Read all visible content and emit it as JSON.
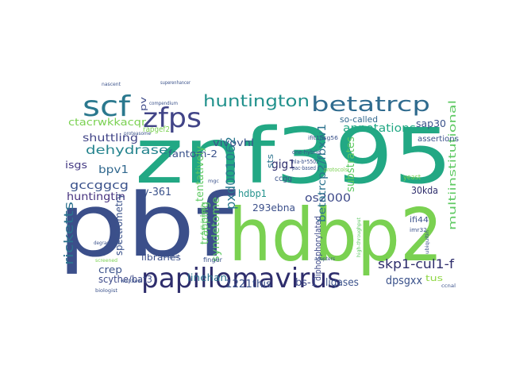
{
  "words": [
    {
      "text": "znf395",
      "color": "#22a884"
    },
    {
      "text": "pbf",
      "color": "#3b4f8a"
    },
    {
      "text": "hdbp2",
      "color": "#7ad151"
    },
    {
      "text": "papillomavirus",
      "color": "#2e2d6c"
    },
    {
      "text": "scf",
      "color": "#2a788e"
    },
    {
      "text": "zfps",
      "color": "#414487"
    },
    {
      "text": "betatrcp",
      "color": "#2f6b8e"
    },
    {
      "text": "huntington",
      "color": "#21918c"
    },
    {
      "text": "dehydrase",
      "color": "#25848e"
    },
    {
      "text": "ctacrwkkacqr",
      "color": "#7ad151"
    },
    {
      "text": "fantom-2",
      "color": "#3a528b"
    },
    {
      "text": "shuttling",
      "color": "#414487"
    },
    {
      "text": "bpv1",
      "color": "#31688e"
    },
    {
      "text": "isgs",
      "color": "#443983"
    },
    {
      "text": "gccggcg",
      "color": "#3b528b"
    },
    {
      "text": "huntingtin",
      "color": "#46327e"
    },
    {
      "text": "ricketts",
      "color": "#2c728e"
    },
    {
      "text": "y-361",
      "color": "#3b528b"
    },
    {
      "text": "rapgef2",
      "color": "#7ad151"
    },
    {
      "text": "tentatively",
      "color": "#5ec962"
    },
    {
      "text": "trapping",
      "color": "#5ec962"
    },
    {
      "text": "syndetome",
      "color": "#5ec962"
    },
    {
      "text": "vivovhl",
      "color": "#3b528b"
    },
    {
      "text": "gig1",
      "color": "#2e2d6c"
    },
    {
      "text": "pxd001062",
      "color": "#2a788e"
    },
    {
      "text": "hdbp1",
      "color": "#21918c"
    },
    {
      "text": "293ebna",
      "color": "#3b4f8a"
    },
    {
      "text": "os2000",
      "color": "#3e4a89"
    },
    {
      "text": "betatrcp2/fbxw1",
      "color": "#2c728e"
    },
    {
      "text": "substrates",
      "color": "#5ec962"
    },
    {
      "text": "annotations",
      "color": "#22a884"
    },
    {
      "text": "30kda",
      "color": "#2e2d6c"
    },
    {
      "text": "sap30",
      "color": "#3b528b"
    },
    {
      "text": "multiinstitutional",
      "color": "#5ec962"
    },
    {
      "text": "skp1-cul1-f",
      "color": "#2e2d6c"
    },
    {
      "text": "dpsgxx",
      "color": "#3b528b"
    },
    {
      "text": "tus",
      "color": "#8fd744"
    },
    {
      "text": "ligases",
      "color": "#3b528b"
    },
    {
      "text": "bs-1",
      "color": "#3e4a89"
    },
    {
      "text": "1221this",
      "color": "#3b528b"
    },
    {
      "text": "linehan",
      "color": "#2c728e"
    },
    {
      "text": "scythe/bat3",
      "color": "#3e4a89"
    },
    {
      "text": "crep",
      "color": "#3b528b"
    },
    {
      "text": "libraries",
      "color": "#3b4f8a"
    },
    {
      "text": "spectrometry",
      "color": "#3b528b"
    },
    {
      "text": "diphosphorylated",
      "color": "#3e4a89"
    },
    {
      "text": "so-called",
      "color": "#31688e"
    },
    {
      "text": "assertions",
      "color": "#3b528b"
    },
    {
      "text": "ifi44",
      "color": "#3b528b"
    },
    {
      "text": "ccgg",
      "color": "#3b528b"
    },
    {
      "text": "pv",
      "color": "#3e4a89"
    },
    {
      "text": "sts",
      "color": "#2c728e"
    },
    {
      "text": "ifit1/isg56",
      "color": "#3b528b"
    },
    {
      "text": "yeast",
      "color": "#7ad151"
    },
    {
      "text": "finger",
      "color": "#3b528b"
    },
    {
      "text": "full-length",
      "color": "#5ec962"
    },
    {
      "text": "one-hybrid",
      "color": "#3b528b"
    },
    {
      "text": "pac-based",
      "color": "#3b528b"
    },
    {
      "text": "protocols",
      "color": "#7ad151"
    },
    {
      "text": "hla-b*5502",
      "color": "#3b528b"
    },
    {
      "text": "compendium",
      "color": "#3b528b"
    },
    {
      "text": "superenhancer",
      "color": "#3b528b"
    },
    {
      "text": "nascent",
      "color": "#3b528b"
    },
    {
      "text": "proteasome",
      "color": "#3b528b"
    },
    {
      "text": "biologist",
      "color": "#3b528b"
    },
    {
      "text": "screened",
      "color": "#7ad151"
    },
    {
      "text": "high-throughput",
      "color": "#5ec962"
    },
    {
      "text": "ubiquitin",
      "color": "#3b528b"
    },
    {
      "text": "ccnal",
      "color": "#3b528b"
    },
    {
      "text": "mgc",
      "color": "#3b528b"
    },
    {
      "text": "project",
      "color": "#3b528b"
    },
    {
      "text": "degradation",
      "color": "#3b528b"
    },
    {
      "text": "imr32",
      "color": "#3b528b"
    },
    {
      "text": "workflow",
      "color": "#3b528b"
    },
    {
      "text": "adapters",
      "color": "#3b528b"
    }
  ]
}
